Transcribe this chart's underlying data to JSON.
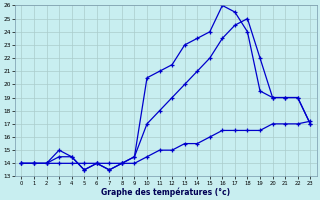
{
  "title": "Graphe des températures (°c)",
  "bg_color": "#c8eef0",
  "grid_color": "#aacccc",
  "line_color": "#0000cc",
  "xlim": [
    -0.5,
    23.5
  ],
  "ylim": [
    13,
    26
  ],
  "xticks": [
    0,
    1,
    2,
    3,
    4,
    5,
    6,
    7,
    8,
    9,
    10,
    11,
    12,
    13,
    14,
    15,
    16,
    17,
    18,
    19,
    20,
    21,
    22,
    23
  ],
  "yticks": [
    13,
    14,
    15,
    16,
    17,
    18,
    19,
    20,
    21,
    22,
    23,
    24,
    25,
    26
  ],
  "line1_x": [
    0,
    1,
    2,
    3,
    4,
    5,
    6,
    7,
    8,
    9,
    10,
    11,
    12,
    13,
    14,
    15,
    16,
    17,
    18,
    19,
    20,
    21,
    22,
    23
  ],
  "line1_y": [
    14,
    14,
    14,
    14,
    14,
    14,
    14,
    14,
    14,
    14,
    14.5,
    15,
    15,
    15.5,
    15.5,
    16,
    16.5,
    16.5,
    16.5,
    16.5,
    17,
    17,
    17,
    17.2
  ],
  "line2_x": [
    0,
    1,
    2,
    3,
    4,
    5,
    6,
    7,
    8,
    9,
    10,
    11,
    12,
    13,
    14,
    15,
    16,
    17,
    18,
    19,
    20,
    21,
    22,
    23
  ],
  "line2_y": [
    14,
    14,
    14,
    15,
    14.5,
    13.5,
    14,
    13.5,
    14,
    14.5,
    20.5,
    21,
    21.5,
    23,
    23.5,
    24,
    26,
    25.5,
    24,
    19.5,
    19,
    19,
    19,
    17
  ],
  "line3_x": [
    0,
    1,
    2,
    3,
    4,
    5,
    6,
    7,
    8,
    9,
    10,
    11,
    12,
    13,
    14,
    15,
    16,
    17,
    18,
    19,
    20,
    21,
    22,
    23
  ],
  "line3_y": [
    14,
    14,
    14,
    14.5,
    14.5,
    13.5,
    14,
    13.5,
    14,
    14.5,
    17,
    18,
    19,
    20,
    21,
    22,
    23.5,
    24.5,
    25,
    22,
    19,
    19,
    19,
    17
  ]
}
